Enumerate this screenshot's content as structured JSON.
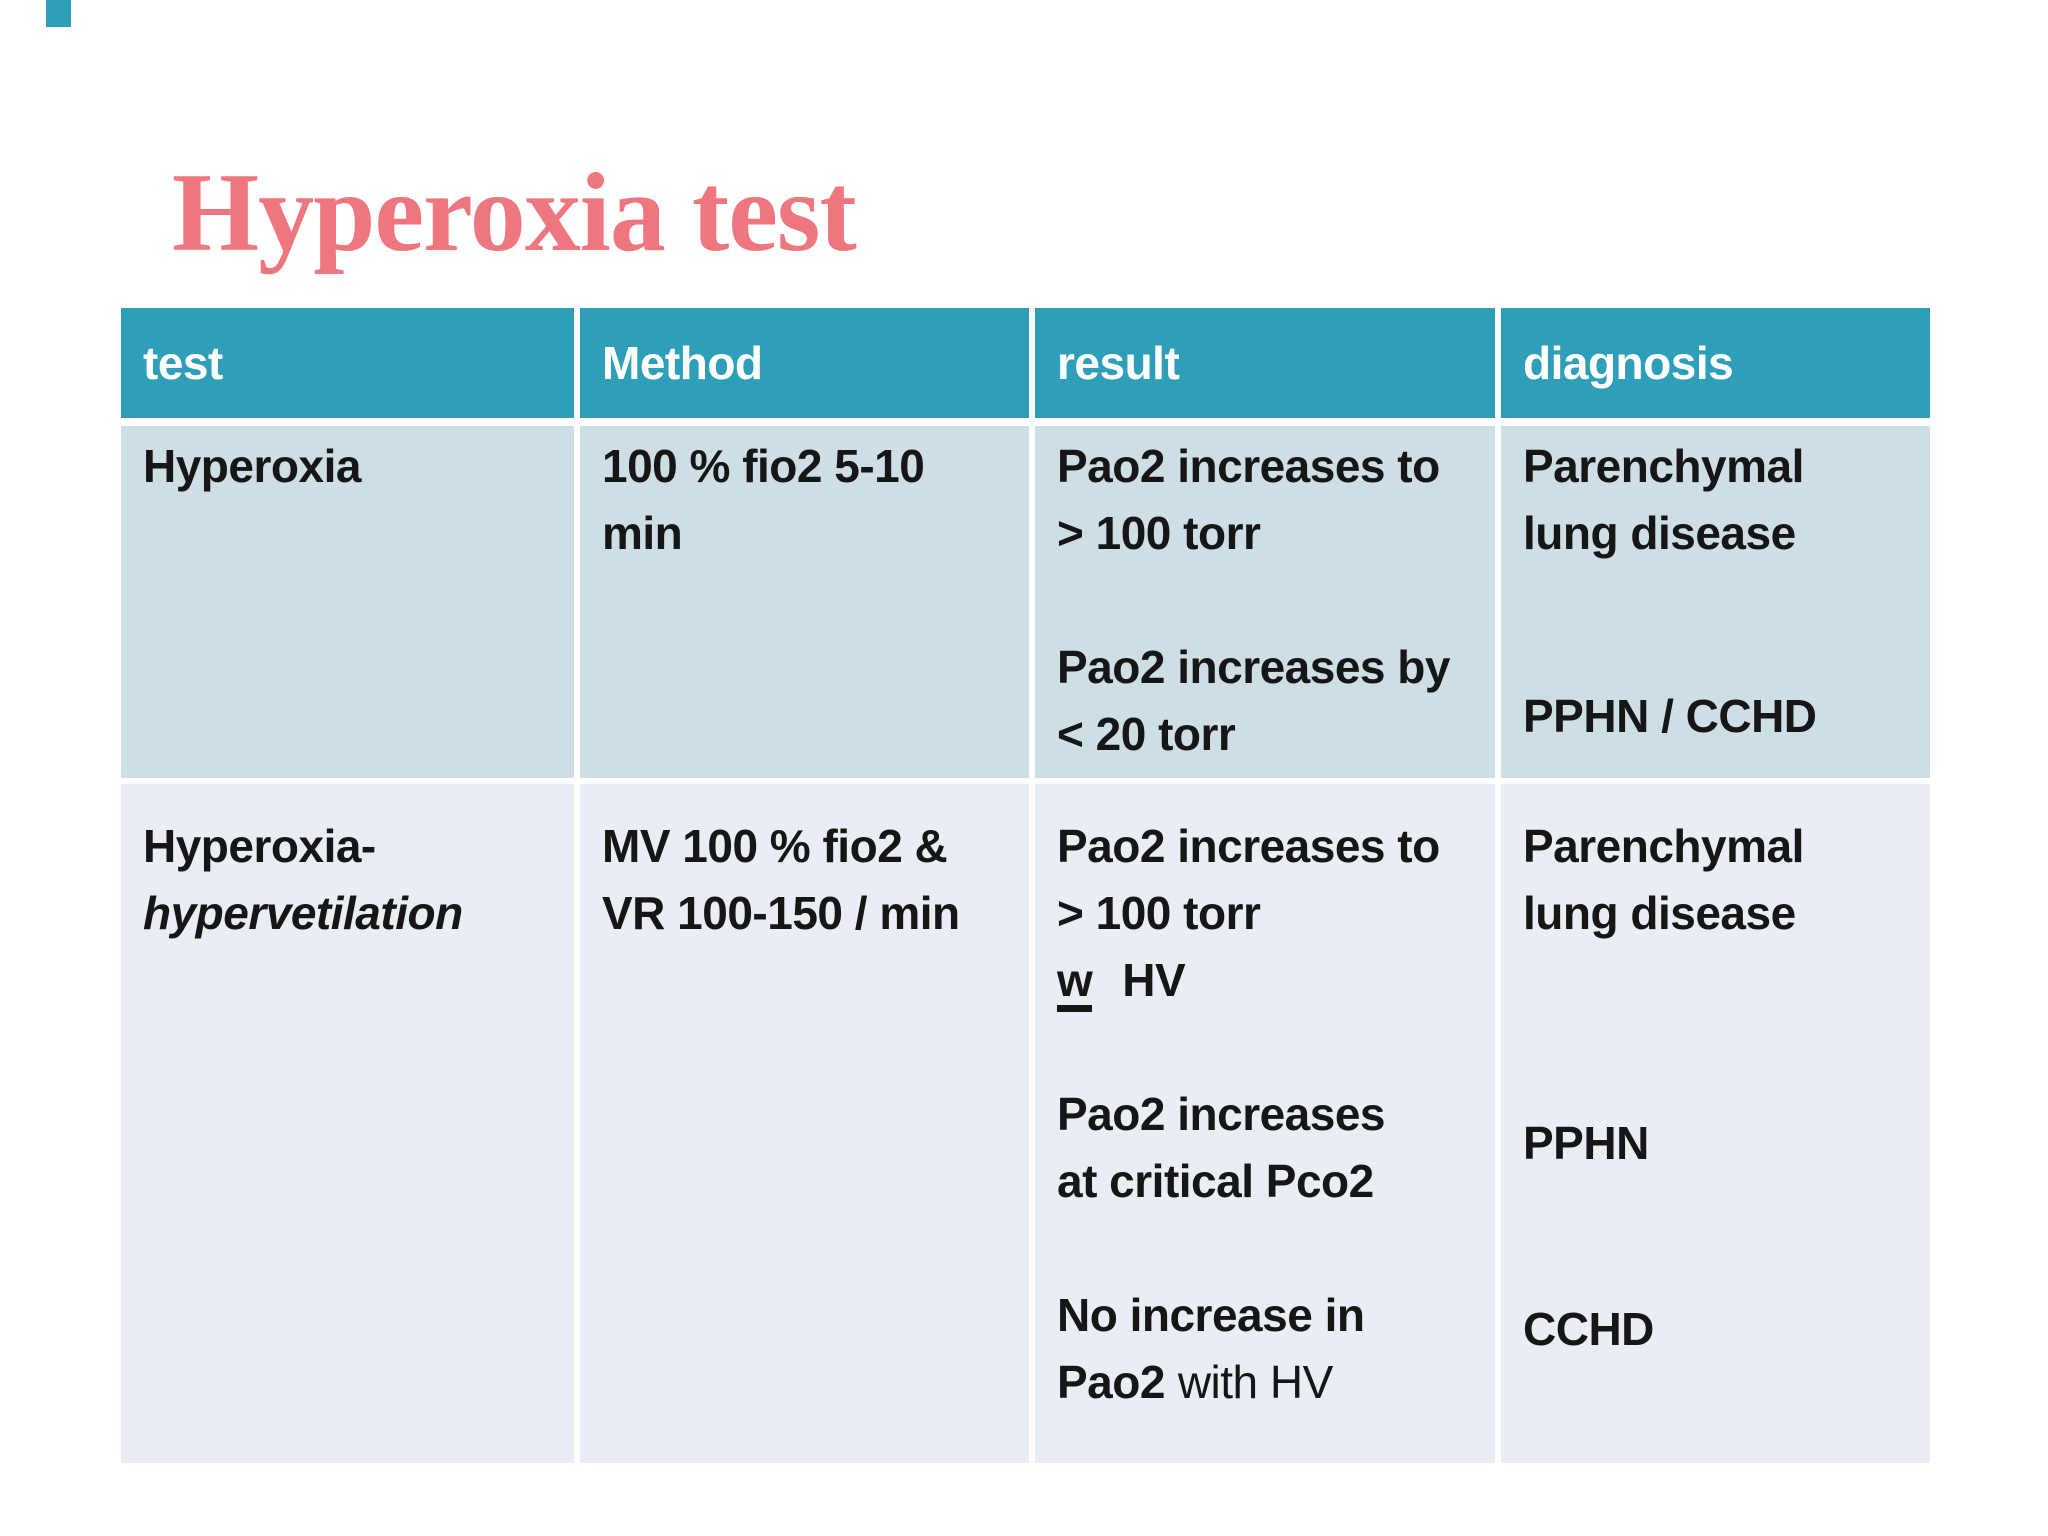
{
  "title": "Hyperoxia test",
  "colors": {
    "title_accent": "#ed767f",
    "header_teal": "#2f9fb9",
    "row1_bg": "#cddee5",
    "row2_bg": "#e9eef5",
    "text": "#161616"
  },
  "table": {
    "headers": [
      "test",
      "Method",
      "result",
      "diagnosis"
    ],
    "rows": [
      {
        "test": {
          "name": "Hyperoxia"
        },
        "method": {
          "lines": [
            "100 % fio2 5-10",
            "min"
          ]
        },
        "result": {
          "b1l1": "Pao2 increases to",
          "b1l2": "> 100 torr",
          "b2l1": "Pao2 increases by",
          "b2l2": "< 20 torr"
        },
        "diagnosis": {
          "l1": "Parenchymal",
          "l2": "lung disease",
          "l3": "PPHN / CCHD"
        }
      },
      {
        "test": {
          "name": "Hyperoxia-",
          "sub": "hypervetilation"
        },
        "method": {
          "lines": [
            "MV 100 % fio2 &",
            "VR 100-150 / min"
          ]
        },
        "result": {
          "b1l1": "Pao2 increases to",
          "b1l2": "> 100 torr",
          "w": "w",
          "w_rest": "HV",
          "b2l1": "Pao2 increases",
          "b2l2": "at critical Pco2",
          "b3l1": "No increase in",
          "b3l2_bold": "Pao2",
          "b3l2_rest": "with HV"
        },
        "diagnosis": {
          "l1": "Parenchymal",
          "l2": "lung disease",
          "l3": "PPHN",
          "l4": "CCHD"
        }
      }
    ]
  }
}
